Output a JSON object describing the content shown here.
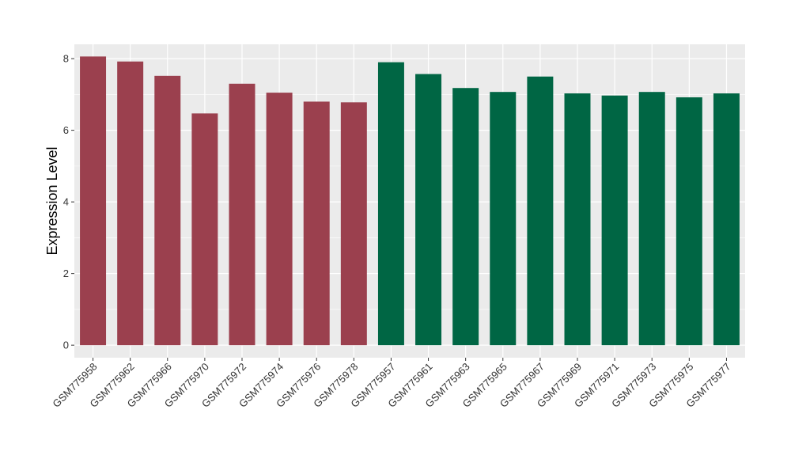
{
  "chart_data": {
    "type": "bar",
    "title": "",
    "xlabel": "",
    "ylabel": "Expression Level",
    "ylim": [
      -0.35,
      8.4
    ],
    "yticks": [
      0,
      2,
      4,
      6,
      8
    ],
    "grid": true,
    "legend": "none",
    "colors": {
      "group1": "#9b404e",
      "group2": "#006644",
      "panel": "#ebebeb",
      "grid": "#ffffff"
    },
    "categories": [
      "GSM775958",
      "GSM775962",
      "GSM775966",
      "GSM775970",
      "GSM775972",
      "GSM775974",
      "GSM775976",
      "GSM775978",
      "GSM775957",
      "GSM775961",
      "GSM775963",
      "GSM775965",
      "GSM775967",
      "GSM775969",
      "GSM775971",
      "GSM775973",
      "GSM775975",
      "GSM775977"
    ],
    "values": [
      8.06,
      7.92,
      7.52,
      6.47,
      7.3,
      7.05,
      6.8,
      6.78,
      7.9,
      7.57,
      7.18,
      7.07,
      7.5,
      7.03,
      6.97,
      7.07,
      6.92,
      7.03
    ],
    "groups": [
      1,
      1,
      1,
      1,
      1,
      1,
      1,
      1,
      2,
      2,
      2,
      2,
      2,
      2,
      2,
      2,
      2,
      2
    ]
  }
}
